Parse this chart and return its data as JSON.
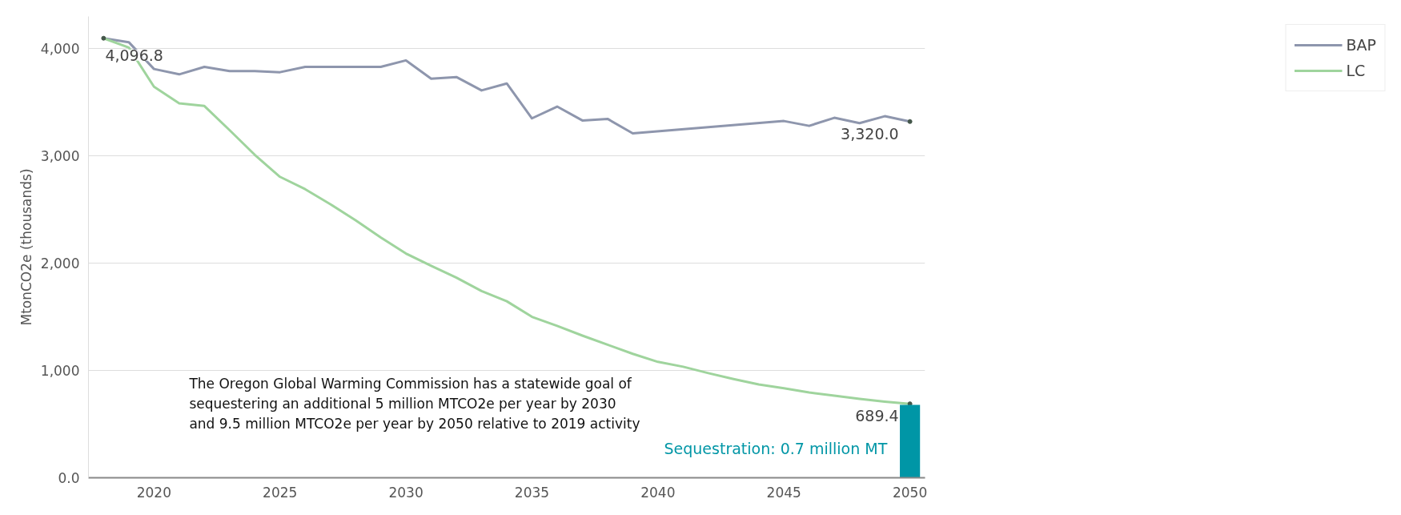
{
  "chart_data": {
    "type": "line",
    "ylabel": "MtonCO2e (thousands)",
    "xlim": [
      2017.4,
      2050.6
    ],
    "xticks": [
      2020,
      2025,
      2030,
      2035,
      2040,
      2045,
      2050
    ],
    "ylim": [
      0,
      4300
    ],
    "yticks": [
      {
        "value": 0,
        "label": "0.0"
      },
      {
        "value": 1000,
        "label": "1,000"
      },
      {
        "value": 2000,
        "label": "2,000"
      },
      {
        "value": 3000,
        "label": "3,000"
      },
      {
        "value": 4000,
        "label": "4,000"
      }
    ],
    "grid": "y",
    "legend": "top right",
    "series": [
      {
        "name": "BAP",
        "color": "#8e96ad",
        "x": [
          2018,
          2019,
          2020,
          2021,
          2022,
          2023,
          2024,
          2025,
          2026,
          2027,
          2028,
          2029,
          2030,
          2031,
          2032,
          2033,
          2034,
          2035,
          2036,
          2037,
          2038,
          2039,
          2045,
          2046,
          2047,
          2048,
          2049,
          2050
        ],
        "values": [
          4096.8,
          4060,
          3810,
          3760,
          3830,
          3790,
          3790,
          3780,
          3830,
          3830,
          3830,
          3830,
          3890,
          3720,
          3735,
          3610,
          3675,
          3350,
          3460,
          3330,
          3345,
          3210,
          3325,
          3280,
          3355,
          3305,
          3370,
          3320.0
        ],
        "value_labels": [
          null,
          null,
          null,
          null,
          null,
          null,
          null,
          null,
          null,
          null,
          null,
          null,
          null,
          null,
          null,
          null,
          null,
          null,
          null,
          null,
          null,
          null,
          null,
          null,
          null,
          null,
          null,
          "3,320.0"
        ]
      },
      {
        "name": "LC",
        "color": "#9fd49d",
        "x": [
          2018,
          2019,
          2020,
          2021,
          2022,
          2023,
          2024,
          2025,
          2026,
          2027,
          2028,
          2029,
          2030,
          2031,
          2032,
          2033,
          2034,
          2035,
          2036,
          2037,
          2038,
          2039,
          2040,
          2041,
          2042,
          2043,
          2044,
          2045,
          2046,
          2047,
          2048,
          2049,
          2050
        ],
        "values": [
          4096.8,
          4010,
          3645,
          3490,
          3465,
          3240,
          3010,
          2805,
          2690,
          2550,
          2400,
          2240,
          2090,
          1975,
          1865,
          1740,
          1645,
          1500,
          1415,
          1325,
          1240,
          1155,
          1080,
          1035,
          975,
          920,
          870,
          835,
          795,
          765,
          735,
          710,
          689.4
        ],
        "value_labels": [
          "4,096.8",
          null,
          null,
          null,
          null,
          null,
          null,
          null,
          null,
          null,
          null,
          null,
          null,
          null,
          null,
          null,
          null,
          null,
          null,
          null,
          null,
          null,
          null,
          null,
          null,
          null,
          null,
          null,
          null,
          null,
          null,
          null,
          "689.4"
        ]
      },
      {
        "name": "Sequestration: 0.7 million MT",
        "type": "bar",
        "color": "#0096a6",
        "x": [
          2050
        ],
        "values": [
          680
        ]
      }
    ],
    "annotations": [
      "The Oregon Global Warming Commission has a statewide goal of\nsequestering an additional 5 million MTCO2e per year by 2030\nand 9.5 million MTCO2e per year by 2050 relative to 2019 activity"
    ]
  }
}
